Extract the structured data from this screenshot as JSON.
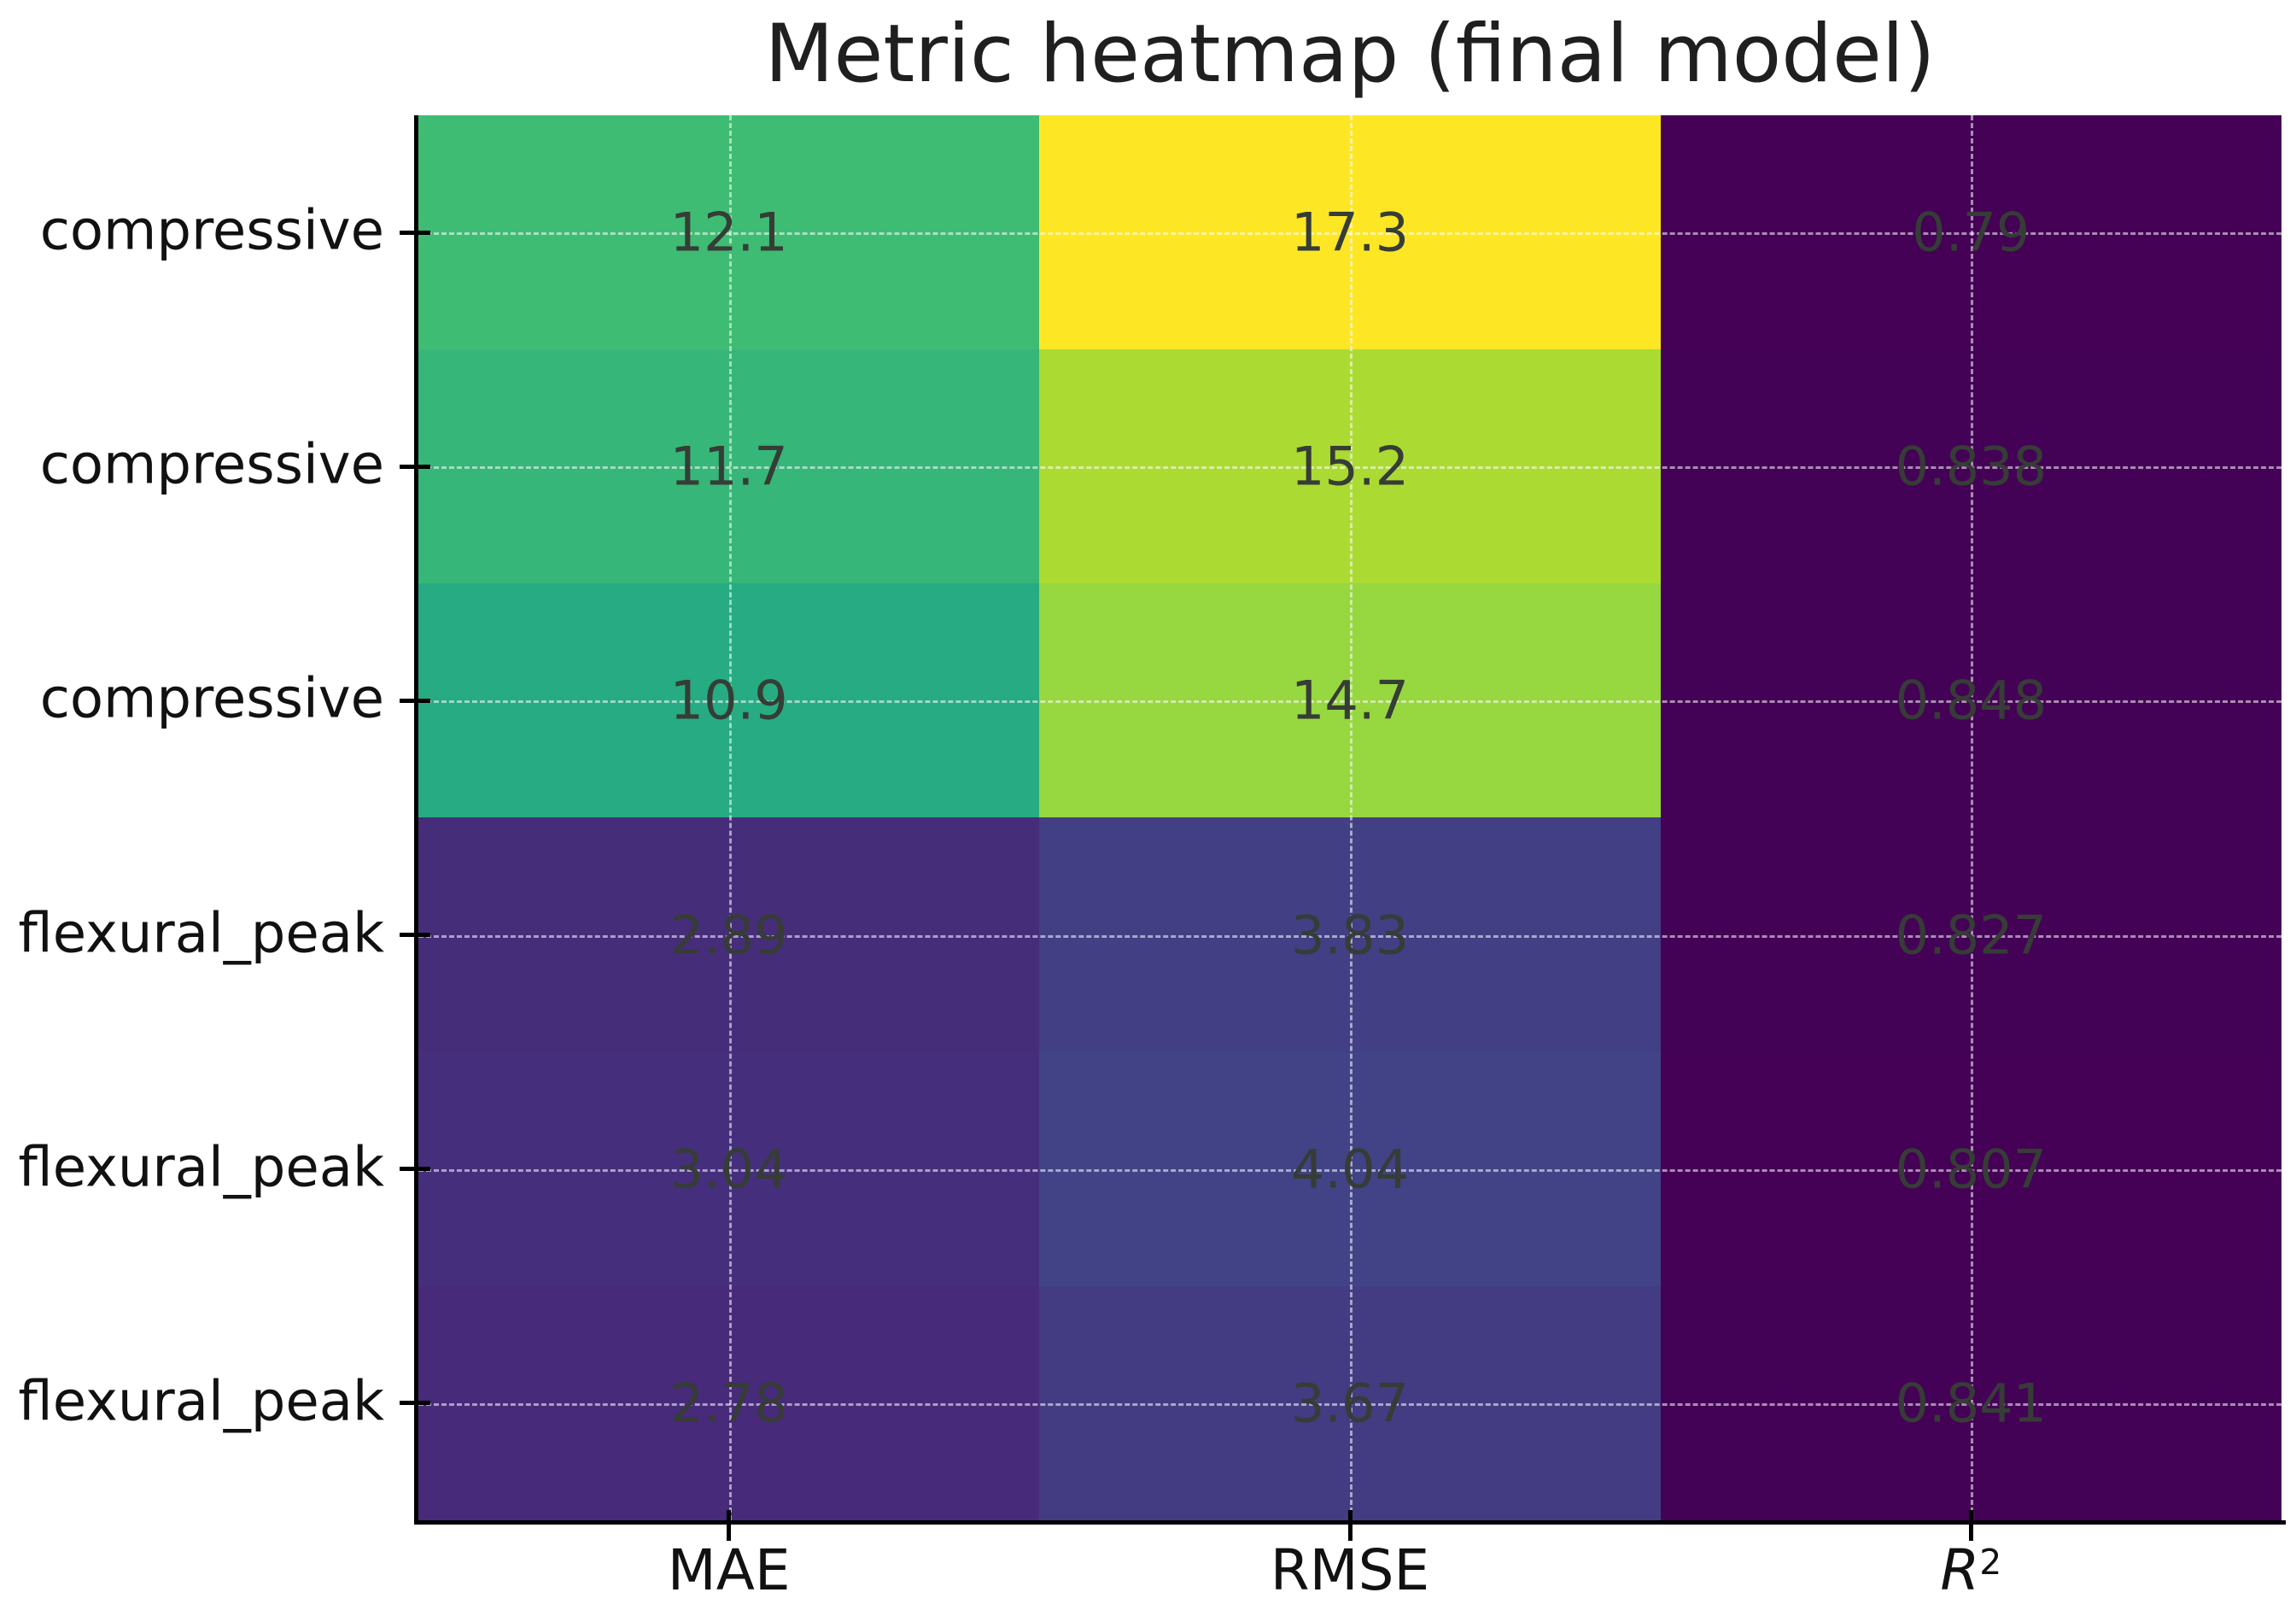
{
  "figure": {
    "background_color": "#ffffff",
    "title_color": "#1f1f1f",
    "tick_label_color": "#111111"
  },
  "chart_data": {
    "type": "heatmap",
    "title": "Metric heatmap (final model)",
    "colormap": "viridis",
    "vmin": 0.79,
    "vmax": 17.3,
    "grid": true,
    "grid_style": "dashed",
    "gridline_color": "rgba(255,255,255,0.55)",
    "legend": "none",
    "rows": [
      "compressive",
      "compressive",
      "compressive",
      "flexural_peak",
      "flexural_peak",
      "flexural_peak"
    ],
    "columns": [
      {
        "label": "MAE",
        "italic": false,
        "superscript": ""
      },
      {
        "label": "RMSE",
        "italic": false,
        "superscript": ""
      },
      {
        "label": "R",
        "italic": true,
        "superscript": "2"
      }
    ],
    "values": [
      [
        12.1,
        17.3,
        0.79
      ],
      [
        11.7,
        15.2,
        0.838
      ],
      [
        10.9,
        14.7,
        0.848
      ],
      [
        2.89,
        3.83,
        0.827
      ],
      [
        3.04,
        4.04,
        0.807
      ],
      [
        2.78,
        3.67,
        0.841
      ]
    ],
    "annotations": [
      [
        "12.1",
        "17.3",
        "0.79"
      ],
      [
        "11.7",
        "15.2",
        "0.838"
      ],
      [
        "10.9",
        "14.7",
        "0.848"
      ],
      [
        "2.89",
        "3.83",
        "0.827"
      ],
      [
        "3.04",
        "4.04",
        "0.807"
      ],
      [
        "2.78",
        "3.67",
        "0.841"
      ]
    ],
    "cell_colors": [
      [
        "#3fbc73",
        "#fde725",
        "#440155"
      ],
      [
        "#36b678",
        "#abdb32",
        "#440256"
      ],
      [
        "#26ab82",
        "#97d73f",
        "#440256"
      ],
      [
        "#462d7a",
        "#423f84",
        "#440256"
      ],
      [
        "#452f7c",
        "#414386",
        "#440155"
      ],
      [
        "#472a79",
        "#433c82",
        "#440256"
      ]
    ],
    "annotation_color": "#363c36",
    "axis_color": "#000000"
  }
}
